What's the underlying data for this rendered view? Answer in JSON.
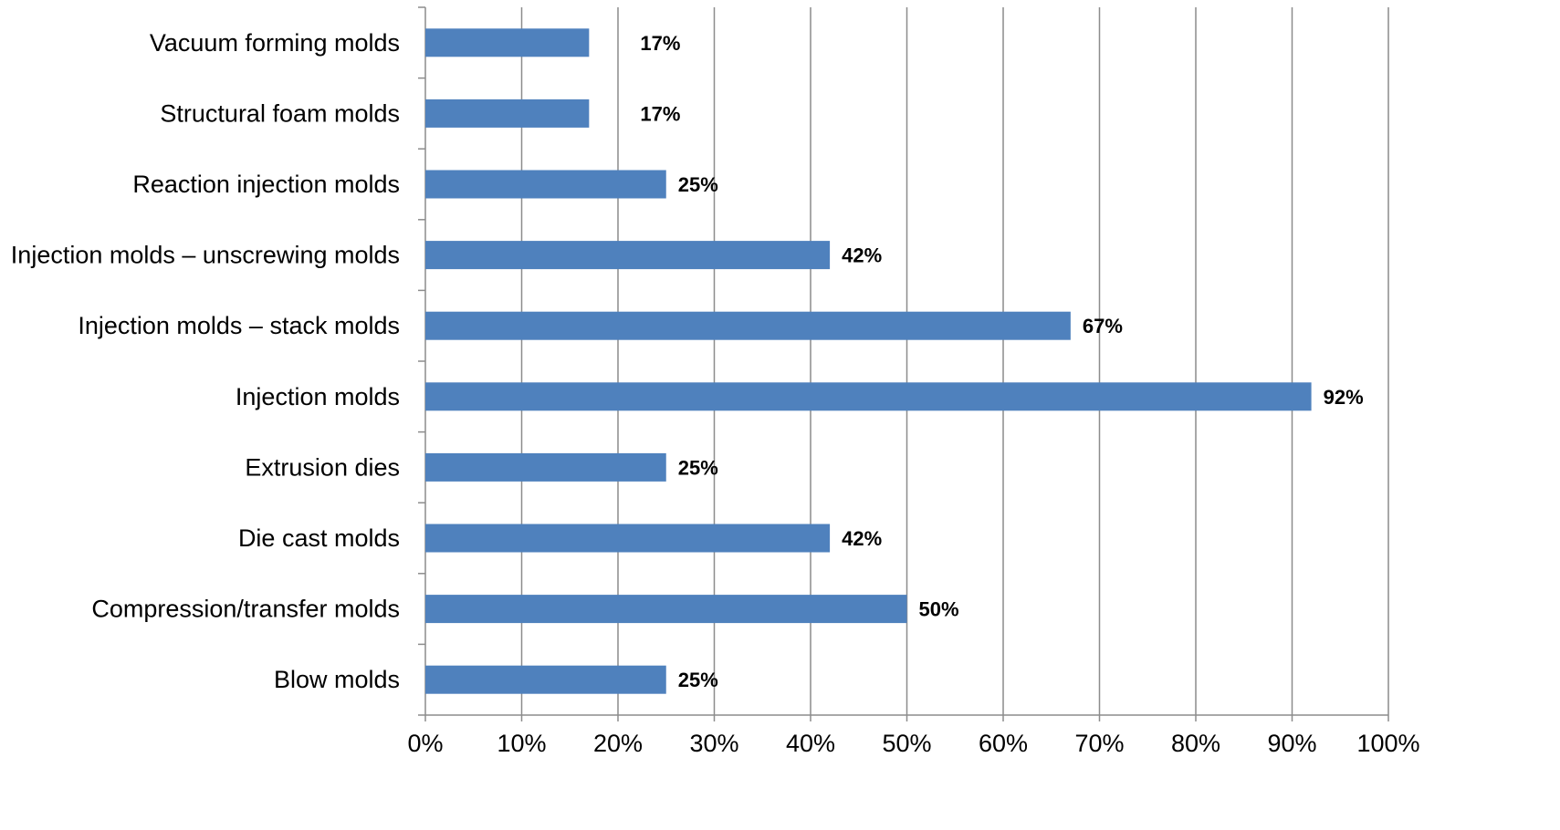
{
  "chart_data": {
    "type": "bar",
    "orientation": "horizontal",
    "categories": [
      "Vacuum forming molds",
      "Structural foam molds",
      "Reaction injection molds",
      "Injection molds – unscrewing molds",
      "Injection molds – stack molds",
      "Injection molds",
      "Extrusion dies",
      "Die cast molds",
      "Compression/transfer molds",
      "Blow molds"
    ],
    "values": [
      17,
      17,
      25,
      42,
      67,
      92,
      25,
      42,
      50,
      25
    ],
    "data_labels": [
      "17%",
      "17%",
      "25%",
      "42%",
      "67%",
      "92%",
      "25%",
      "42%",
      "50%",
      "25%"
    ],
    "xlim": [
      0,
      100
    ],
    "x_ticks": [
      0,
      10,
      20,
      30,
      40,
      50,
      60,
      70,
      80,
      90,
      100
    ],
    "x_tick_labels": [
      "0%",
      "10%",
      "20%",
      "30%",
      "40%",
      "50%",
      "60%",
      "70%",
      "80%",
      "90%",
      "100%"
    ],
    "vertical_gridlines": true,
    "legend": "none",
    "colors": {
      "bar": "#4f81bd",
      "grid": "#8c8c8c",
      "axis": "#8c8c8c"
    }
  }
}
